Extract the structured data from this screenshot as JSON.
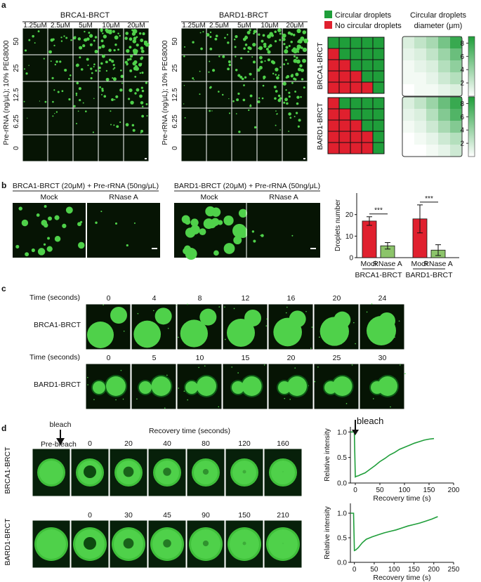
{
  "panel_a": {
    "letter": "a",
    "left_title": "BRCA1-BRCT",
    "right_title": "BARD1-BRCT",
    "concentrations": [
      "1.25μM",
      "2.5μM",
      "5μM",
      "10μM",
      "20μM"
    ],
    "rna_levels": [
      "50",
      "25",
      "12.5",
      "6.25",
      "0"
    ],
    "y_axis_label": "Pre-rRNA (ng/μL); 10% PEG8000",
    "legend_circular": "Circular droplets",
    "legend_none": "No circular droplets",
    "diameter_title": "Circular droplets diameter (μm)",
    "heatmap_row1_label": "BRCA1-BRCT",
    "heatmap_row2_label": "BARD1-BRCT",
    "colorbar_ticks": [
      "8",
      "6",
      "4",
      "2"
    ],
    "colors": {
      "green": "#1f9e3a",
      "red": "#e0202e",
      "droplet": "#4fd14a"
    }
  },
  "panel_b": {
    "letter": "b",
    "left_title": "BRCA1-BRCT (20μM) + Pre-rRNA (50ng/μL)",
    "right_title": "BARD1-BRCT (20μM) + Pre-rRNA (50ng/μL)",
    "mock": "Mock",
    "rnase": "RNase A"
  },
  "panel_c": {
    "letter": "c",
    "time_label": "Time (seconds)",
    "row1_label": "BRCA1-BRCT",
    "row2_label": "BARD1-BRCT",
    "row1_times": [
      "0",
      "4",
      "8",
      "12",
      "16",
      "20",
      "24"
    ],
    "row2_times": [
      "0",
      "5",
      "10",
      "15",
      "20",
      "25",
      "30"
    ]
  },
  "panel_d": {
    "letter": "d",
    "bleach": "bleach",
    "recovery_title": "Recovery time (seconds)",
    "prebleach": "Pre-bleach",
    "row1_label": "BRCA1-BRCT",
    "row2_label": "BARD1-BRCT",
    "row1_times": [
      "0",
      "20",
      "40",
      "80",
      "120",
      "160"
    ],
    "row2_times": [
      "0",
      "30",
      "45",
      "90",
      "150",
      "210"
    ]
  },
  "chart_data": [
    {
      "type": "heatmap",
      "title": "",
      "rows": [
        "50",
        "25",
        "12.5",
        "6.25",
        "0"
      ],
      "columns": [
        "1.25μM",
        "2.5μM",
        "5μM",
        "10μM",
        "20μM"
      ],
      "series": [
        {
          "name": "BRCA1-BRCT",
          "values": [
            [
              1,
              1,
              1,
              1,
              1
            ],
            [
              0,
              1,
              1,
              1,
              1
            ],
            [
              0,
              0,
              1,
              1,
              1
            ],
            [
              0,
              0,
              0,
              1,
              1
            ],
            [
              0,
              0,
              0,
              0,
              1
            ]
          ]
        },
        {
          "name": "BARD1-BRCT",
          "values": [
            [
              0,
              1,
              1,
              1,
              1
            ],
            [
              0,
              0,
              1,
              1,
              1
            ],
            [
              0,
              0,
              0,
              1,
              1
            ],
            [
              0,
              0,
              0,
              0,
              1
            ],
            [
              0,
              0,
              0,
              0,
              1
            ]
          ]
        }
      ],
      "legend": [
        "Circular droplets",
        "No circular droplets"
      ]
    },
    {
      "type": "heatmap",
      "title": "Circular droplets diameter (μm)",
      "rows": [
        "50",
        "25",
        "12.5",
        "6.25",
        "0"
      ],
      "columns": [
        "1.25μM",
        "2.5μM",
        "5μM",
        "10μM",
        "20μM"
      ],
      "series": [
        {
          "name": "BRCA1-BRCT",
          "values": [
            [
              1.5,
              2.5,
              3.5,
              5.5,
              8
            ],
            [
              1,
              1.5,
              2.5,
              4,
              6
            ],
            [
              0.5,
              1,
              1.5,
              3,
              4.5
            ],
            [
              0.5,
              0.5,
              1,
              2,
              3
            ],
            [
              0,
              0.5,
              0.5,
              1,
              1.5
            ]
          ]
        },
        {
          "name": "BARD1-BRCT",
          "values": [
            [
              1.5,
              2.5,
              4,
              6,
              8
            ],
            [
              1,
              1.5,
              3,
              5,
              7
            ],
            [
              0.5,
              1,
              2,
              3.5,
              5
            ],
            [
              0,
              0.5,
              1,
              2,
              3
            ],
            [
              0,
              0,
              0.5,
              1,
              2
            ]
          ]
        }
      ],
      "colorbar": {
        "min": 0,
        "max": 9,
        "ticks": [
          2,
          4,
          6,
          8
        ]
      }
    },
    {
      "type": "bar",
      "title": "",
      "ylabel": "Droplets number",
      "ylim": [
        0,
        30
      ],
      "yticks": [
        0,
        10,
        20
      ],
      "categories": [
        "Mock",
        "RNase A",
        "Mock",
        "RNase A"
      ],
      "groups": [
        "BRCA1-BRCT",
        "BARD1-BRCT"
      ],
      "values": [
        17,
        5.5,
        18,
        3.5
      ],
      "errors": [
        2,
        1.5,
        6.5,
        2.5
      ],
      "colors": [
        "#e0202e",
        "#8cc46a",
        "#e0202e",
        "#8cc46a"
      ],
      "significance": "***"
    },
    {
      "type": "line",
      "title": "",
      "xlabel": "Recovery time (s)",
      "ylabel": "Relative intensity",
      "xlim": [
        -10,
        200
      ],
      "ylim": [
        0,
        1.1
      ],
      "xticks": [
        0,
        50,
        100,
        150,
        200
      ],
      "yticks": [
        0.0,
        0.5,
        1.0
      ],
      "annotation": "bleach",
      "series": [
        {
          "x": [
            -10,
            -2,
            0,
            2,
            6,
            10,
            20,
            30,
            40,
            50,
            60,
            70,
            80,
            90,
            100,
            110,
            120,
            130,
            140,
            150,
            160
          ],
          "y": [
            1.0,
            1.0,
            0.12,
            0.13,
            0.14,
            0.16,
            0.2,
            0.27,
            0.34,
            0.42,
            0.48,
            0.55,
            0.6,
            0.66,
            0.7,
            0.74,
            0.78,
            0.81,
            0.84,
            0.86,
            0.87
          ]
        }
      ]
    },
    {
      "type": "line",
      "title": "",
      "xlabel": "Recovery time (s)",
      "ylabel": "Relative intensity",
      "xlim": [
        -10,
        250
      ],
      "ylim": [
        0,
        1.2
      ],
      "xticks": [
        0,
        50,
        100,
        150,
        200,
        250
      ],
      "yticks": [
        0.0,
        0.5,
        1.0
      ],
      "series": [
        {
          "x": [
            -10,
            -2,
            0,
            3,
            10,
            20,
            30,
            45,
            60,
            75,
            90,
            105,
            120,
            135,
            150,
            165,
            180,
            195,
            210
          ],
          "y": [
            1.0,
            1.0,
            0.24,
            0.25,
            0.3,
            0.4,
            0.47,
            0.52,
            0.56,
            0.6,
            0.63,
            0.66,
            0.7,
            0.74,
            0.77,
            0.8,
            0.84,
            0.88,
            0.93
          ]
        }
      ]
    }
  ]
}
